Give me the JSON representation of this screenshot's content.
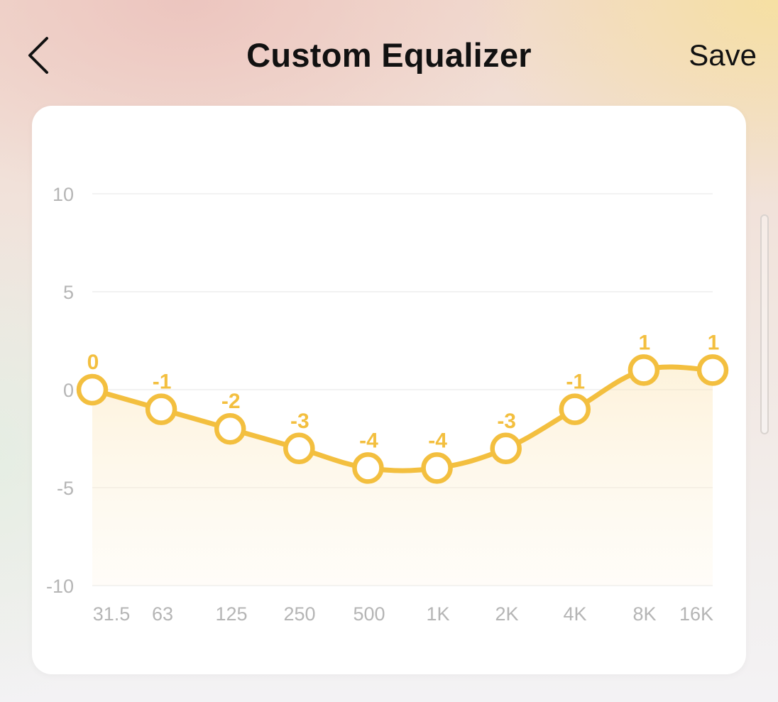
{
  "header": {
    "title": "Custom Equalizer",
    "save_label": "Save"
  },
  "icons": {
    "back": "chevron-left-icon"
  },
  "colors": {
    "accent": "#F3BF3F",
    "grid": "#EEEEEE",
    "tick_label": "#B5B5B5",
    "text": "#111111"
  },
  "chart_data": {
    "type": "line",
    "categories": [
      "31.5",
      "63",
      "125",
      "250",
      "500",
      "1K",
      "2K",
      "4K",
      "8K",
      "16K"
    ],
    "series": [
      {
        "values": [
          0,
          -1,
          -2,
          -3,
          -4,
          -4,
          -3,
          -1,
          1,
          1
        ]
      }
    ],
    "y_ticks": [
      "10",
      "5",
      "0",
      "-5",
      "-10"
    ],
    "ylim": [
      -10,
      10
    ],
    "grid": true,
    "area_fill": true,
    "data_labels": true
  }
}
